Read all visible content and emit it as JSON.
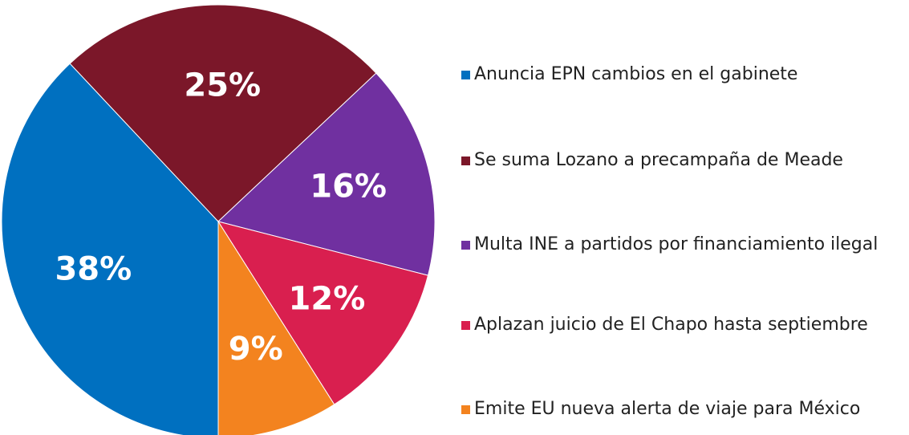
{
  "chart_data": {
    "type": "pie",
    "categories": [
      "Anuncia EPN cambios en el gabinete",
      "Se suma Lozano a precampaña de Meade",
      "Multa INE a partidos por financiamiento ilegal",
      "Aplazan juicio de El Chapo hasta septiembre",
      "Emite EU nueva alerta de viaje para México"
    ],
    "values": [
      38,
      25,
      16,
      12,
      9
    ],
    "value_labels": [
      "38%",
      "25%",
      "16%",
      "12%",
      "9%"
    ],
    "colors": [
      "#0070c0",
      "#7b1729",
      "#7030a0",
      "#d91f4f",
      "#f3831f"
    ]
  }
}
